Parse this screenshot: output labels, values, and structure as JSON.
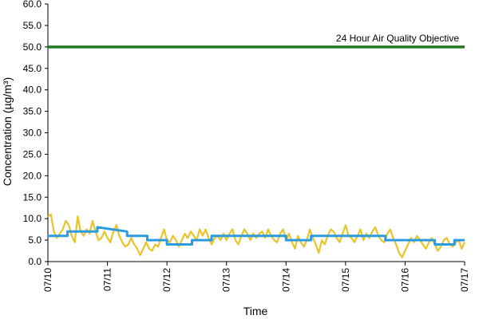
{
  "chart_data": {
    "type": "line",
    "xlabel": "Time",
    "ylabel": "Concentration (µg/m³)",
    "ylim": [
      0,
      60
    ],
    "yticks": [
      "0.0",
      "5.0",
      "10.0",
      "15.0",
      "20.0",
      "25.0",
      "30.0",
      "35.0",
      "40.0",
      "45.0",
      "50.0",
      "55.0",
      "60.0"
    ],
    "x_tick_labels": [
      "07/10",
      "07/11",
      "07/12",
      "07/13",
      "07/14",
      "07/15",
      "07/16",
      "07/17"
    ],
    "x_range_days": [
      0,
      7
    ],
    "grid": false,
    "objective": {
      "value": 50.0,
      "label": "24 Hour Air Quality Objective",
      "color": "#1e7b1e"
    },
    "series": [
      {
        "color": "#e8c32a",
        "x": [
          0.0,
          0.05,
          0.1,
          0.15,
          0.2,
          0.25,
          0.3,
          0.35,
          0.4,
          0.45,
          0.5,
          0.55,
          0.6,
          0.65,
          0.7,
          0.75,
          0.8,
          0.85,
          0.9,
          0.95,
          1.0,
          1.05,
          1.1,
          1.15,
          1.2,
          1.25,
          1.3,
          1.35,
          1.4,
          1.45,
          1.5,
          1.55,
          1.6,
          1.65,
          1.7,
          1.75,
          1.8,
          1.85,
          1.9,
          1.95,
          2.0,
          2.05,
          2.1,
          2.15,
          2.2,
          2.25,
          2.3,
          2.35,
          2.4,
          2.45,
          2.5,
          2.55,
          2.6,
          2.65,
          2.7,
          2.75,
          2.8,
          2.85,
          2.9,
          2.95,
          3.0,
          3.05,
          3.1,
          3.15,
          3.2,
          3.25,
          3.3,
          3.35,
          3.4,
          3.45,
          3.5,
          3.55,
          3.6,
          3.65,
          3.7,
          3.75,
          3.8,
          3.85,
          3.9,
          3.95,
          4.0,
          4.05,
          4.1,
          4.15,
          4.2,
          4.25,
          4.3,
          4.35,
          4.4,
          4.45,
          4.5,
          4.55,
          4.6,
          4.65,
          4.7,
          4.75,
          4.8,
          4.85,
          4.9,
          4.95,
          5.0,
          5.05,
          5.1,
          5.15,
          5.2,
          5.25,
          5.3,
          5.35,
          5.4,
          5.45,
          5.5,
          5.55,
          5.6,
          5.65,
          5.7,
          5.75,
          5.8,
          5.85,
          5.9,
          5.95,
          6.0,
          6.05,
          6.1,
          6.15,
          6.2,
          6.25,
          6.3,
          6.35,
          6.4,
          6.45,
          6.5,
          6.55,
          6.6,
          6.65,
          6.7,
          6.75,
          6.8,
          6.85,
          6.9,
          6.95,
          7.0
        ],
        "values": [
          10.5,
          11.0,
          7.0,
          5.5,
          6.5,
          7.5,
          9.5,
          8.5,
          6.0,
          4.5,
          10.5,
          7.0,
          6.0,
          7.5,
          6.5,
          9.5,
          7.0,
          5.0,
          5.5,
          7.0,
          5.5,
          4.5,
          7.0,
          8.5,
          6.0,
          4.5,
          3.5,
          4.0,
          5.5,
          4.0,
          3.0,
          1.5,
          3.0,
          4.5,
          3.0,
          2.5,
          4.0,
          3.5,
          5.5,
          7.5,
          5.0,
          4.5,
          6.0,
          5.0,
          3.5,
          5.0,
          6.5,
          5.5,
          7.0,
          6.0,
          5.0,
          7.5,
          6.0,
          7.5,
          5.5,
          4.0,
          5.5,
          6.0,
          5.0,
          6.5,
          5.0,
          6.5,
          7.5,
          5.0,
          4.0,
          6.0,
          7.5,
          6.5,
          5.0,
          6.5,
          5.5,
          6.5,
          7.0,
          5.5,
          7.5,
          6.0,
          5.0,
          4.5,
          6.5,
          7.5,
          5.0,
          6.5,
          4.5,
          3.0,
          6.0,
          4.5,
          3.5,
          5.0,
          7.5,
          5.5,
          4.0,
          2.0,
          5.0,
          4.0,
          6.0,
          7.5,
          7.0,
          5.5,
          4.5,
          6.5,
          8.5,
          6.0,
          5.5,
          4.5,
          6.0,
          7.5,
          5.0,
          6.5,
          5.5,
          7.0,
          8.0,
          6.0,
          5.0,
          4.5,
          6.5,
          7.5,
          5.5,
          4.0,
          2.0,
          1.0,
          2.5,
          4.0,
          5.5,
          4.5,
          6.0,
          5.0,
          4.0,
          3.0,
          4.5,
          5.5,
          4.0,
          2.5,
          3.5,
          5.0,
          5.5,
          4.0,
          3.5,
          4.5,
          5.0,
          3.0,
          4.5
        ]
      },
      {
        "color": "#2b9be0",
        "x": [
          0.0,
          0.33,
          0.33,
          0.67,
          0.67,
          0.83,
          0.83,
          1.33,
          1.33,
          1.67,
          1.67,
          2.0,
          2.0,
          2.42,
          2.42,
          2.75,
          2.75,
          3.17,
          3.17,
          3.75,
          3.75,
          4.0,
          4.0,
          4.17,
          4.17,
          4.42,
          4.42,
          5.25,
          5.25,
          5.67,
          5.67,
          6.0,
          6.0,
          6.5,
          6.5,
          6.83,
          6.83,
          7.0
        ],
        "values": [
          6.0,
          6.0,
          7.0,
          7.0,
          7.0,
          7.0,
          8.0,
          7.0,
          6.0,
          6.0,
          5.0,
          5.0,
          4.0,
          4.0,
          5.0,
          5.0,
          6.0,
          6.0,
          6.0,
          6.0,
          6.0,
          6.0,
          5.0,
          5.0,
          5.0,
          5.0,
          6.0,
          6.0,
          6.0,
          6.0,
          5.0,
          5.0,
          5.0,
          5.0,
          4.0,
          4.0,
          5.0,
          5.0
        ]
      }
    ]
  }
}
